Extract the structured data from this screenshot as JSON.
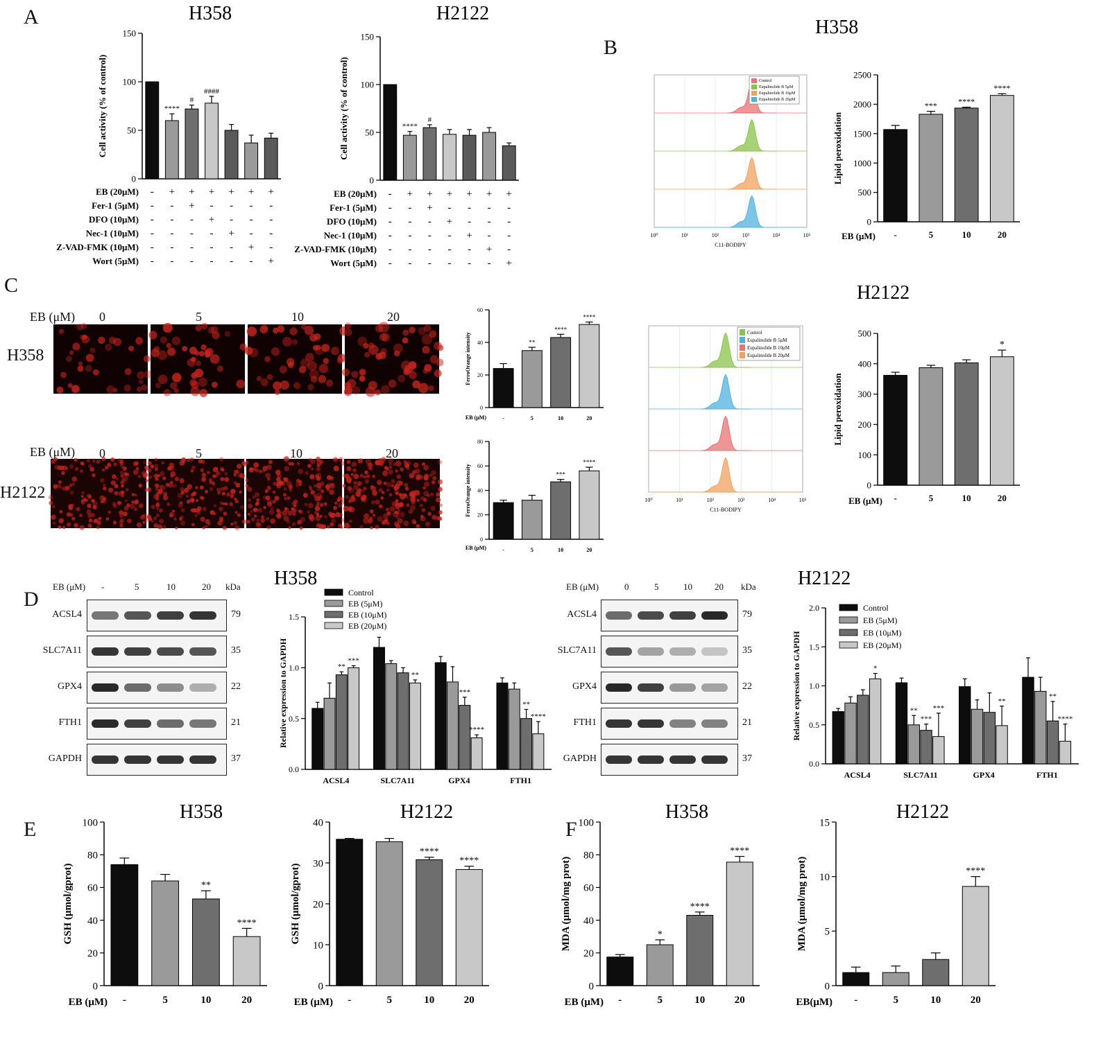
{
  "panel_letters": [
    "A",
    "B",
    "C",
    "D",
    "E",
    "F"
  ],
  "colors": {
    "black": "#0d0d0d",
    "g1": "#9a9a9a",
    "g2": "#6e6e6e",
    "g3": "#c8c8c8",
    "g4": "#5a5a5a",
    "flow_control_h358": "#e57373",
    "flow_5": "#8bc34a",
    "flow_10": "#f0a25e",
    "flow_20": "#4fb3e0",
    "fluor": "#c8251e"
  },
  "chart_data": [
    {
      "id": "A_H358",
      "type": "bar",
      "title": "H358",
      "ylabel": "Cell activity (% of control)",
      "ylim": [
        0,
        150
      ],
      "yticks": [
        0,
        50,
        100,
        150
      ],
      "values": [
        100,
        60,
        72,
        78,
        50,
        37,
        42
      ],
      "errors": [
        0,
        7,
        4,
        7,
        6,
        8,
        5
      ],
      "stars": [
        "",
        "****",
        "#",
        "####",
        "",
        "",
        ""
      ],
      "fills": [
        "black",
        "g1",
        "g2",
        "g3",
        "g4",
        "g1",
        "g4"
      ],
      "treatment_rows": [
        {
          "label": "EB (20μM)",
          "signs": [
            "-",
            "+",
            "+",
            "+",
            "+",
            "+",
            "+"
          ]
        },
        {
          "label": "Fer-1 (5μM)",
          "signs": [
            "-",
            "-",
            "+",
            "-",
            "-",
            "-",
            "-"
          ]
        },
        {
          "label": "DFO (10μM)",
          "signs": [
            "-",
            "-",
            "-",
            "+",
            "-",
            "-",
            "-"
          ]
        },
        {
          "label": "Nec-1 (10μM)",
          "signs": [
            "-",
            "-",
            "-",
            "-",
            "+",
            "-",
            "-"
          ]
        },
        {
          "label": "Z-VAD-FMK (10μM)",
          "signs": [
            "-",
            "-",
            "-",
            "-",
            "-",
            "+",
            "-"
          ]
        },
        {
          "label": "Wort (5μM)",
          "signs": [
            "-",
            "-",
            "-",
            "-",
            "-",
            "-",
            "+"
          ]
        }
      ]
    },
    {
      "id": "A_H2122",
      "type": "bar",
      "title": "H2122",
      "ylabel": "Cell activity (% of control)",
      "ylim": [
        0,
        150
      ],
      "yticks": [
        0,
        50,
        100,
        150
      ],
      "values": [
        100,
        47,
        55,
        48,
        47,
        50,
        36
      ],
      "errors": [
        0,
        4,
        3,
        5,
        6,
        5,
        3
      ],
      "stars": [
        "",
        "****",
        "#",
        "",
        "",
        "",
        ""
      ],
      "fills": [
        "black",
        "g1",
        "g2",
        "g3",
        "g4",
        "g1",
        "g4"
      ],
      "treatment_rows": [
        {
          "label": "EB (20μM)",
          "signs": [
            "-",
            "+",
            "+",
            "+",
            "+",
            "+",
            "+"
          ]
        },
        {
          "label": "Fer-1 (5μM)",
          "signs": [
            "-",
            "-",
            "+",
            "-",
            "-",
            "-",
            "-"
          ]
        },
        {
          "label": "DFO (10μM)",
          "signs": [
            "-",
            "-",
            "-",
            "+",
            "-",
            "-",
            "-"
          ]
        },
        {
          "label": "Nec-1 (10μM)",
          "signs": [
            "-",
            "-",
            "-",
            "-",
            "+",
            "-",
            "-"
          ]
        },
        {
          "label": "Z-VAD-FMK (10μM)",
          "signs": [
            "-",
            "-",
            "-",
            "-",
            "-",
            "+",
            "-"
          ]
        },
        {
          "label": "Wort (5μM)",
          "signs": [
            "-",
            "-",
            "-",
            "-",
            "-",
            "-",
            "+"
          ]
        }
      ]
    },
    {
      "id": "B_H358_bar",
      "type": "bar",
      "title": "H358",
      "ylabel": "Lipid peroxidation",
      "xlabel": "EB (μM)",
      "ylim": [
        0,
        2500
      ],
      "yticks": [
        0,
        500,
        1000,
        1500,
        2000,
        2500
      ],
      "categories": [
        "-",
        "5",
        "10",
        "20"
      ],
      "values": [
        1570,
        1830,
        1935,
        2150
      ],
      "errors": [
        70,
        50,
        15,
        30
      ],
      "stars": [
        "",
        "***",
        "****",
        "****"
      ],
      "fills": [
        "black",
        "g1",
        "g2",
        "g3"
      ]
    },
    {
      "id": "B_H2122_bar",
      "type": "bar",
      "title": "H2122",
      "ylabel": "Lipid peroxidation",
      "xlabel": "EB (μM)",
      "ylim": [
        0,
        500
      ],
      "yticks": [
        0,
        100,
        200,
        300,
        400,
        500
      ],
      "categories": [
        "-",
        "5",
        "10",
        "20"
      ],
      "values": [
        362,
        387,
        403,
        423
      ],
      "errors": [
        10,
        8,
        10,
        22
      ],
      "stars": [
        "",
        "",
        "",
        "*"
      ],
      "fills": [
        "black",
        "g1",
        "g2",
        "g3"
      ]
    },
    {
      "id": "B_H358_flow",
      "type": "area",
      "xlabel": "C11-BODIPY",
      "xticks": [
        "10⁰",
        "10¹",
        "10²",
        "10³",
        "10⁴",
        "10⁵"
      ],
      "legend": [
        "Control",
        "Eupalinolide B 5μM",
        "Eupalinolide B 10μM",
        "Eupalinolide B 20μM"
      ],
      "peaks_log10": [
        3.2,
        3.2,
        3.2,
        3.2
      ],
      "fills": [
        "flow_control_h358",
        "flow_5",
        "flow_10",
        "flow_20"
      ]
    },
    {
      "id": "B_H2122_flow",
      "type": "area",
      "xlabel": "C11-BODIPY",
      "xticks": [
        "10⁰",
        "10¹",
        "10²",
        "10³",
        "10⁴",
        "10⁵"
      ],
      "legend": [
        "Control",
        "Eupalinolide B 5μM",
        "Eupalinolide B 10μM",
        "Eupalinolide B 20μM"
      ],
      "peaks_log10": [
        2.5,
        2.5,
        2.5,
        2.5
      ],
      "fills": [
        "flow_5",
        "flow_20",
        "flow_control_h358",
        "flow_10"
      ]
    },
    {
      "id": "C_H358_bar",
      "type": "bar",
      "ylabel": "FerroOrange intensity",
      "xlabel": "EB (μM)",
      "ylim": [
        0,
        60
      ],
      "yticks": [
        0,
        20,
        40,
        60
      ],
      "categories": [
        "-",
        "5",
        "10",
        "20"
      ],
      "values": [
        24,
        35,
        43,
        51
      ],
      "errors": [
        3,
        2,
        2,
        1.5
      ],
      "stars": [
        "",
        "**",
        "****",
        "****"
      ],
      "fills": [
        "black",
        "g1",
        "g2",
        "g3"
      ]
    },
    {
      "id": "C_H2122_bar",
      "type": "bar",
      "ylabel": "FerroOrange intensity",
      "xlabel": "EB (μM)",
      "ylim": [
        0,
        80
      ],
      "yticks": [
        0,
        20,
        40,
        60,
        80
      ],
      "categories": [
        "-",
        "5",
        "10",
        "20"
      ],
      "values": [
        30,
        32,
        47,
        56
      ],
      "errors": [
        2,
        4,
        2,
        3
      ],
      "stars": [
        "",
        "",
        "***",
        "****"
      ],
      "fills": [
        "black",
        "g1",
        "g2",
        "g3"
      ]
    },
    {
      "id": "D_H358_bar",
      "type": "bar",
      "title": "H358",
      "ylabel": "Relative expression to GAPDH",
      "ylim": [
        0,
        1.5
      ],
      "yticks": [
        0.0,
        0.5,
        1.0,
        1.5
      ],
      "categories": [
        "ACSL4",
        "SLC7A11",
        "GPX4",
        "FTH1"
      ],
      "series": [
        {
          "name": "Control",
          "values": [
            0.6,
            1.2,
            1.05,
            0.85
          ],
          "errors": [
            0.06,
            0.1,
            0.06,
            0.05
          ],
          "stars": [
            "",
            "",
            "",
            ""
          ]
        },
        {
          "name": "EB (5μM)",
          "values": [
            0.7,
            1.04,
            0.86,
            0.79
          ],
          "errors": [
            0.15,
            0.03,
            0.15,
            0.06
          ],
          "stars": [
            "",
            "",
            "",
            ""
          ]
        },
        {
          "name": "EB (10μM)",
          "values": [
            0.93,
            0.95,
            0.63,
            0.5
          ],
          "errors": [
            0.03,
            0.05,
            0.08,
            0.09
          ],
          "stars": [
            "**",
            "",
            "***",
            "**"
          ]
        },
        {
          "name": "EB (20μM)",
          "values": [
            1.0,
            0.85,
            0.31,
            0.35
          ],
          "errors": [
            0.02,
            0.03,
            0.03,
            0.12
          ],
          "stars": [
            "***",
            "**",
            "****",
            "****"
          ]
        }
      ],
      "fills": [
        "black",
        "g1",
        "g2",
        "g3"
      ]
    },
    {
      "id": "D_H2122_bar",
      "type": "bar",
      "title": "H2122",
      "ylabel": "Relative expression to GAPDH",
      "ylim": [
        0,
        2.0
      ],
      "yticks": [
        0.0,
        0.5,
        1.0,
        1.5,
        2.0
      ],
      "categories": [
        "ACSL4",
        "SLC7A11",
        "GPX4",
        "FTH1"
      ],
      "series": [
        {
          "name": "Control",
          "values": [
            0.67,
            1.04,
            0.99,
            1.11
          ],
          "errors": [
            0.04,
            0.06,
            0.1,
            0.25
          ],
          "stars": [
            "",
            "",
            "",
            ""
          ]
        },
        {
          "name": "EB (5μM)",
          "values": [
            0.78,
            0.5,
            0.7,
            0.93
          ],
          "errors": [
            0.08,
            0.12,
            0.12,
            0.18
          ],
          "stars": [
            "",
            "**",
            "",
            ""
          ]
        },
        {
          "name": "EB (10μM)",
          "values": [
            0.88,
            0.43,
            0.66,
            0.55
          ],
          "errors": [
            0.07,
            0.08,
            0.25,
            0.25
          ],
          "stars": [
            "",
            "***",
            "",
            "**"
          ]
        },
        {
          "name": "EB (20μM)",
          "values": [
            1.09,
            0.35,
            0.49,
            0.29
          ],
          "errors": [
            0.07,
            0.3,
            0.25,
            0.22
          ],
          "stars": [
            "*",
            "***",
            "**",
            "****"
          ]
        }
      ],
      "fills": [
        "black",
        "g1",
        "g2",
        "g3"
      ]
    },
    {
      "id": "E_H358",
      "type": "bar",
      "title": "H358",
      "ylabel": "GSH (μmol/gprot)",
      "xlabel": "EB (μM)",
      "ylim": [
        0,
        100
      ],
      "yticks": [
        0,
        20,
        40,
        60,
        80,
        100
      ],
      "categories": [
        "-",
        "5",
        "10",
        "20"
      ],
      "values": [
        74,
        64,
        53,
        30
      ],
      "errors": [
        4,
        4,
        5,
        5
      ],
      "stars": [
        "",
        "",
        "**",
        "****"
      ],
      "fills": [
        "black",
        "g1",
        "g2",
        "g3"
      ]
    },
    {
      "id": "E_H2122",
      "type": "bar",
      "title": "H2122",
      "ylabel": "GSH (μmol/gprot)",
      "xlabel": "EB (μM)",
      "ylim": [
        0,
        40
      ],
      "yticks": [
        0,
        10,
        20,
        30,
        40
      ],
      "categories": [
        "-",
        "5",
        "10",
        "20"
      ],
      "values": [
        35.8,
        35.2,
        30.8,
        28.4
      ],
      "errors": [
        0.2,
        0.8,
        0.6,
        0.8
      ],
      "stars": [
        "",
        "",
        "****",
        "****"
      ],
      "fills": [
        "black",
        "g1",
        "g2",
        "g3"
      ]
    },
    {
      "id": "F_H358",
      "type": "bar",
      "title": "H358",
      "ylabel": "MDA (μmol/mg prot)",
      "xlabel": "EB (μM)",
      "ylim": [
        0,
        100
      ],
      "yticks": [
        0,
        20,
        40,
        60,
        80,
        100
      ],
      "categories": [
        "-",
        "5",
        "10",
        "20"
      ],
      "values": [
        17.5,
        25,
        43,
        75.5
      ],
      "errors": [
        1.5,
        3,
        2,
        3.5
      ],
      "stars": [
        "",
        "*",
        "****",
        "****"
      ],
      "fills": [
        "black",
        "g1",
        "g2",
        "g3"
      ]
    },
    {
      "id": "F_H2122",
      "type": "bar",
      "title": "H2122",
      "ylabel": "MDA (μmol/mg prot)",
      "xlabel": "EB(μM)",
      "ylim": [
        0,
        15
      ],
      "yticks": [
        0,
        5,
        10,
        15
      ],
      "categories": [
        "-",
        "5",
        "10",
        "20"
      ],
      "values": [
        1.2,
        1.2,
        2.4,
        9.1
      ],
      "errors": [
        0.5,
        0.6,
        0.6,
        0.9
      ],
      "stars": [
        "",
        "",
        "",
        "****"
      ],
      "fills": [
        "black",
        "g1",
        "g2",
        "g3"
      ]
    }
  ],
  "panel_c": {
    "row_titles": [
      "H358",
      "H2122"
    ],
    "eb_label": "EB (μM)",
    "doses": [
      "0",
      "5",
      "10",
      "20"
    ]
  },
  "panel_d": {
    "h358": {
      "eb_label": "EB (μM)",
      "doses": [
        "-",
        "5",
        "10",
        "20"
      ],
      "kda_label": "kDa",
      "blots": [
        {
          "name": "ACSL4",
          "kda": "79",
          "intensity": [
            0.55,
            0.7,
            0.8,
            0.85
          ]
        },
        {
          "name": "SLC7A11",
          "kda": "35",
          "intensity": [
            0.85,
            0.8,
            0.75,
            0.7
          ]
        },
        {
          "name": "GPX4",
          "kda": "22",
          "intensity": [
            0.9,
            0.6,
            0.45,
            0.3
          ]
        },
        {
          "name": "FTH1",
          "kda": "21",
          "intensity": [
            0.9,
            0.8,
            0.6,
            0.55
          ]
        },
        {
          "name": "GAPDH",
          "kda": "37",
          "intensity": [
            0.85,
            0.85,
            0.85,
            0.85
          ]
        }
      ]
    },
    "h2122": {
      "eb_label": "EB (μM)",
      "doses": [
        "0",
        "5",
        "10",
        "20"
      ],
      "kda_label": "kDa",
      "blots": [
        {
          "name": "ACSL4",
          "kda": "79",
          "intensity": [
            0.6,
            0.75,
            0.8,
            0.9
          ]
        },
        {
          "name": "SLC7A11",
          "kda": "35",
          "intensity": [
            0.7,
            0.35,
            0.3,
            0.2
          ]
        },
        {
          "name": "GPX4",
          "kda": "22",
          "intensity": [
            0.9,
            0.8,
            0.4,
            0.35
          ]
        },
        {
          "name": "FTH1",
          "kda": "21",
          "intensity": [
            0.85,
            0.85,
            0.5,
            0.5
          ]
        },
        {
          "name": "GAPDH",
          "kda": "37",
          "intensity": [
            0.85,
            0.85,
            0.85,
            0.85
          ]
        }
      ]
    }
  }
}
